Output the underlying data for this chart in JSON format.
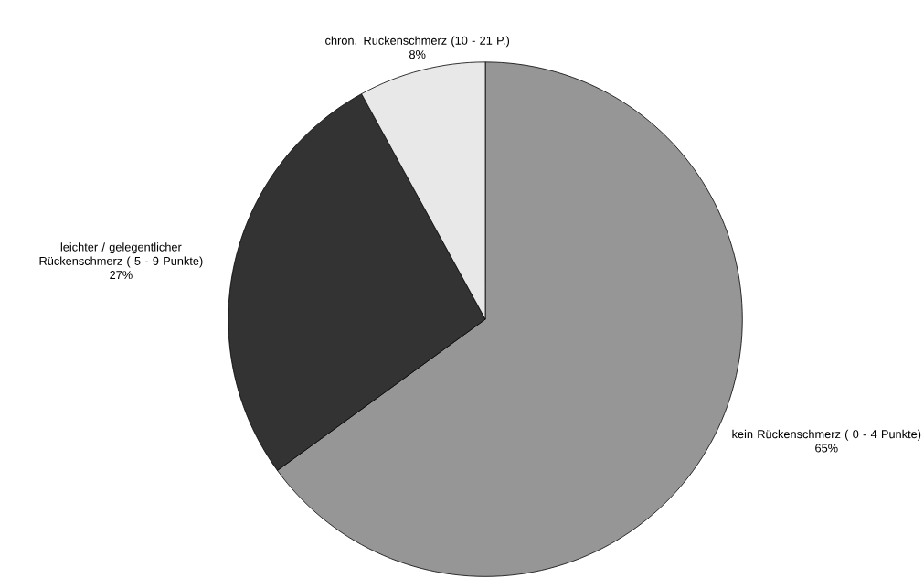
{
  "chart_data": {
    "type": "pie",
    "categories": [
      "kein Rückenschmerz ( 0 - 4 Punkte)",
      "leichter / gelegentlicher Rückenschmerz ( 5 - 9 Punkte)",
      "chron. Rückenschmerz (10 - 21 P.)"
    ],
    "values": [
      65,
      27,
      8
    ],
    "colors": [
      "#969696",
      "#333333",
      "#e8e8e8"
    ],
    "value_labels": [
      "65%",
      "27%",
      "8%"
    ]
  }
}
